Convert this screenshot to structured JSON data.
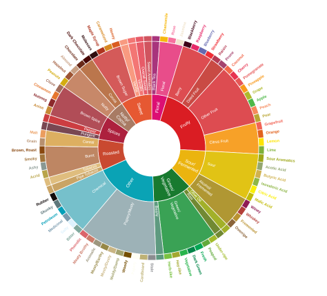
{
  "chart_data": {
    "type": "sunburst",
    "title": "",
    "categories": [
      {
        "name": "Floral",
        "color": "#dc0f73",
        "children": [
          {
            "name": "Black Tea",
            "color": "#a8347c",
            "children": []
          },
          {
            "name": "Floral",
            "color": "#e84d8a",
            "children": [
              {
                "name": "Chamomile",
                "color": "#f6b80c"
              },
              {
                "name": "Rose",
                "color": "#f6719e"
              },
              {
                "name": "Jasmine",
                "color": "#f1e5cf"
              }
            ]
          }
        ]
      },
      {
        "name": "Fruity",
        "color": "#da1d23",
        "children": [
          {
            "name": "Berry",
            "color": "#dd4c51",
            "children": [
              {
                "name": "Blackberry",
                "color": "#3e0317"
              },
              {
                "name": "Raspberry",
                "color": "#e62969"
              },
              {
                "name": "Blueberry",
                "color": "#6569b0"
              },
              {
                "name": "Strawberry",
                "color": "#ef2d36"
              }
            ]
          },
          {
            "name": "Dried Fruit",
            "color": "#c94a44",
            "children": [
              {
                "name": "Raisin",
                "color": "#b53b54"
              },
              {
                "name": "Prune",
                "color": "#a5446f"
              }
            ]
          },
          {
            "name": "Other Fruit",
            "color": "#dd4c51",
            "children": [
              {
                "name": "Coconut",
                "color": "#f2684b"
              },
              {
                "name": "Cherry",
                "color": "#e73451"
              },
              {
                "name": "Pomegranate",
                "color": "#e65656"
              },
              {
                "name": "Pineapple",
                "color": "#f89a1c"
              },
              {
                "name": "Grape",
                "color": "#aeb92c"
              },
              {
                "name": "Apple",
                "color": "#4eb849"
              },
              {
                "name": "Peach",
                "color": "#f68a5c"
              },
              {
                "name": "Pear",
                "color": "#baa635"
              }
            ]
          },
          {
            "name": "Citrus Fruit",
            "color": "#f7a128",
            "children": [
              {
                "name": "Grapefruit",
                "color": "#f26355"
              },
              {
                "name": "Orange",
                "color": "#e2631e"
              },
              {
                "name": "Lemon",
                "color": "#fde404"
              },
              {
                "name": "Lime",
                "color": "#7eb138"
              }
            ]
          }
        ]
      },
      {
        "name": "Sour/\nFermented",
        "color": "#ebb40f",
        "children": [
          {
            "name": "Sour",
            "color": "#e1c315",
            "children": [
              {
                "name": "Sour Aromatics",
                "color": "#9ea718"
              },
              {
                "name": "Acetic Acid",
                "color": "#94a76f"
              },
              {
                "name": "Butyric Acid",
                "color": "#d0b24f"
              },
              {
                "name": "Isovaleric Acid",
                "color": "#8eb646"
              },
              {
                "name": "Citric Acid",
                "color": "#faef07"
              },
              {
                "name": "Malic Acid",
                "color": "#c1ba07"
              }
            ]
          },
          {
            "name": "Alcohol/\nFremented",
            "color": "#b09733",
            "children": [
              {
                "name": "Winey",
                "color": "#8f1c53"
              },
              {
                "name": "Whiskey",
                "color": "#b34039"
              },
              {
                "name": "Fremented",
                "color": "#ba9232"
              },
              {
                "name": "Overripe",
                "color": "#8b6439"
              }
            ]
          }
        ]
      },
      {
        "name": "Green/\nVegetative",
        "color": "#187a2f",
        "children": [
          {
            "name": "Olive Oil",
            "color": "#a2b029",
            "children": []
          },
          {
            "name": "Raw",
            "color": "#718933",
            "children": []
          },
          {
            "name": "Green/\nVegetative",
            "color": "#3aa255",
            "children": [
              {
                "name": "Under-ripe",
                "color": "#a2bb2b"
              },
              {
                "name": "Peapod",
                "color": "#62aa3c"
              },
              {
                "name": "Fresh",
                "color": "#03a653"
              },
              {
                "name": "Dark Green",
                "color": "#038549"
              },
              {
                "name": "Vegetative",
                "color": "#28b44b"
              },
              {
                "name": "Hay-like",
                "color": "#a3a830"
              },
              {
                "name": "Herb-like",
                "color": "#7ac141"
              }
            ]
          },
          {
            "name": "Beany",
            "color": "#5e9a80",
            "children": []
          }
        ]
      },
      {
        "name": "Other",
        "color": "#0aa3b5",
        "children": [
          {
            "name": "Papery/Musty",
            "color": "#9db2b7",
            "children": [
              {
                "name": "Stale",
                "color": "#8b8c90"
              },
              {
                "name": "Cardboard",
                "color": "#beb276"
              },
              {
                "name": "Papery",
                "color": "#fefef4"
              },
              {
                "name": "Woody",
                "color": "#744e03"
              },
              {
                "name": "Moldy/Damp",
                "color": "#a3a36f"
              },
              {
                "name": "Musty/Dusty",
                "color": "#c9b583"
              },
              {
                "name": "Musty/Earthy",
                "color": "#978847"
              },
              {
                "name": "Animalic",
                "color": "#9d977f"
              },
              {
                "name": "Meaty Brothy",
                "color": "#cc7b6a"
              },
              {
                "name": "Phenolic",
                "color": "#db646a"
              }
            ]
          },
          {
            "name": "Chemical",
            "color": "#76c0cb",
            "children": [
              {
                "name": "Bitter",
                "color": "#80a89d"
              },
              {
                "name": "Salty",
                "color": "#def2fd"
              },
              {
                "name": "Medicinal",
                "color": "#7a9bae"
              },
              {
                "name": "Petroleum",
                "color": "#039fb8"
              },
              {
                "name": "Skunky",
                "color": "#5e777b"
              },
              {
                "name": "Rubber",
                "color": "#120c0c"
              }
            ]
          }
        ]
      },
      {
        "name": "Roasted",
        "color": "#c94930",
        "children": [
          {
            "name": "Pipe Tobacco",
            "color": "#caa465",
            "children": []
          },
          {
            "name": "Tobacco",
            "color": "#dfbd7e",
            "children": []
          },
          {
            "name": "Burnt",
            "color": "#be8663",
            "children": [
              {
                "name": "Acrid",
                "color": "#b9a449"
              },
              {
                "name": "Ashy",
                "color": "#899893"
              },
              {
                "name": "Smoky",
                "color": "#a1743b"
              },
              {
                "name": "Brown, Roast",
                "color": "#894810"
              }
            ]
          },
          {
            "name": "Cereal",
            "color": "#ddaf61",
            "children": [
              {
                "name": "Grain",
                "color": "#b7906f"
              },
              {
                "name": "Malt",
                "color": "#eb9d5f"
              }
            ]
          }
        ]
      },
      {
        "name": "Spices",
        "color": "#ad213e",
        "children": [
          {
            "name": "Pungent",
            "color": "#794752",
            "children": []
          },
          {
            "name": "Pepper",
            "color": "#cc3d41",
            "children": []
          },
          {
            "name": "Brown Spice",
            "color": "#b14d57",
            "children": [
              {
                "name": "Anise",
                "color": "#c78936"
              },
              {
                "name": "Nutmeg",
                "color": "#8c292c"
              },
              {
                "name": "Cinnamon",
                "color": "#e5762e"
              },
              {
                "name": "Clove",
                "color": "#a16c5a"
              }
            ]
          }
        ]
      },
      {
        "name": "Nutty/\nCocoa",
        "color": "#a87b64",
        "children": [
          {
            "name": "Nutty",
            "color": "#c78869",
            "children": [
              {
                "name": "Peanuts",
                "color": "#d4ad12"
              },
              {
                "name": "Hazelnut",
                "color": "#9d5433"
              },
              {
                "name": "Almond",
                "color": "#c89f83"
              }
            ]
          },
          {
            "name": "Cocoa",
            "color": "#bb764c",
            "children": [
              {
                "name": "Chocolate",
                "color": "#692a19"
              },
              {
                "name": "Dark Chocolate",
                "color": "#470604"
              }
            ]
          }
        ]
      },
      {
        "name": "Sweet",
        "color": "#e65832",
        "children": [
          {
            "name": "Brown Sugar",
            "color": "#d45a59",
            "children": [
              {
                "name": "Molasses",
                "color": "#310d0f"
              },
              {
                "name": "Maple Syrup",
                "color": "#ae341f"
              },
              {
                "name": "Caramelized",
                "color": "#d78823"
              },
              {
                "name": "Honey",
                "color": "#da5c1f"
              }
            ]
          },
          {
            "name": "Vanilla",
            "color": "#f89a80",
            "children": []
          },
          {
            "name": "Vanillin",
            "color": "#f37674",
            "children": []
          },
          {
            "name": "Overall Sweet",
            "color": "#e75b68",
            "children": []
          },
          {
            "name": "Sweet Aromatics",
            "color": "#d0545f",
            "children": []
          }
        ]
      }
    ]
  }
}
